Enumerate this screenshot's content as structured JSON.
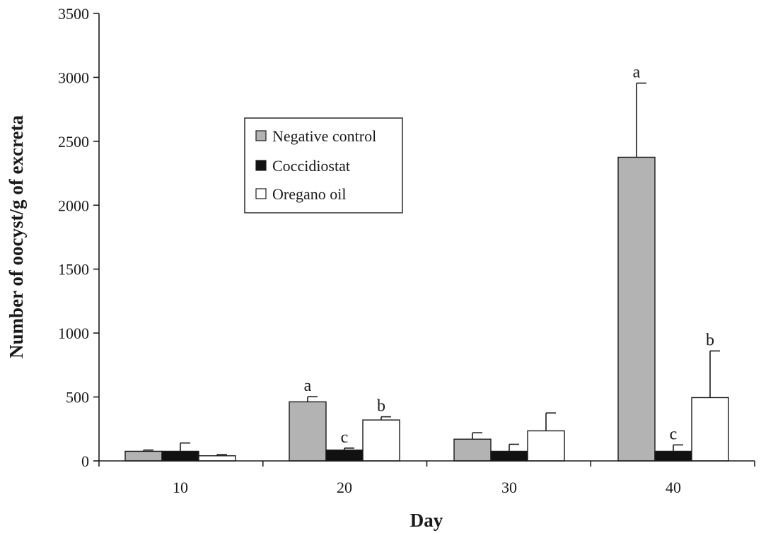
{
  "chart_data": {
    "type": "bar",
    "title": "",
    "xlabel": "Day",
    "ylabel": "Number of oocyst/g of excreta",
    "categories": [
      "10",
      "20",
      "30",
      "40"
    ],
    "ylim": [
      0,
      3500
    ],
    "yticks": [
      0,
      500,
      1000,
      1500,
      2000,
      2500,
      3000,
      3500
    ],
    "ytick_labels": [
      "0",
      "500",
      "1000",
      "1500",
      "2000",
      "2500",
      "3000",
      "3500"
    ],
    "grid": false,
    "legend_position": "upper-left (inside plot)",
    "series": [
      {
        "name": "Negative control",
        "color": "#b3b3b3",
        "values": [
          75,
          462,
          170,
          2375
        ],
        "errors": [
          10,
          40,
          50,
          580
        ],
        "labels": [
          "",
          "a",
          "",
          "a"
        ]
      },
      {
        "name": "Coccidiostat",
        "color": "#111111",
        "values": [
          75,
          85,
          75,
          75
        ],
        "errors": [
          65,
          15,
          55,
          50
        ],
        "labels": [
          "",
          "c",
          "",
          "c"
        ]
      },
      {
        "name": "Oregano oil",
        "color": "#ffffff",
        "values": [
          40,
          320,
          235,
          495
        ],
        "errors": [
          10,
          25,
          140,
          365
        ],
        "labels": [
          "",
          "b",
          "",
          "b"
        ]
      }
    ]
  }
}
